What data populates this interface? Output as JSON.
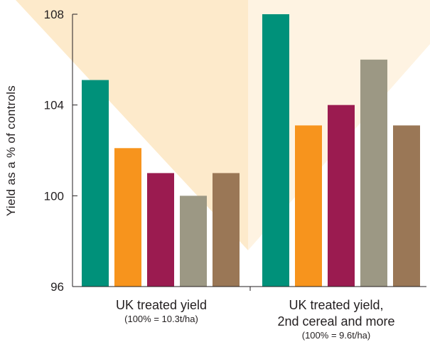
{
  "chart_data": {
    "type": "bar",
    "title": "",
    "xlabel": "",
    "ylabel": "Yield as a % of controls",
    "ylim": [
      96,
      108
    ],
    "yticks": [
      96,
      100,
      104,
      108
    ],
    "colors": [
      "#00917a",
      "#f7941d",
      "#9b1b50",
      "#9c9884",
      "#9a7756"
    ],
    "background_color": "#fdeacb",
    "groups": [
      {
        "label_lines": [
          "UK treated yield"
        ],
        "sublabel_lines": [
          "(100% = 10.3t/ha)"
        ],
        "values": [
          105.1,
          102.1,
          101.0,
          100.0,
          101.0
        ]
      },
      {
        "label_lines": [
          "UK treated yield,",
          "2nd cereal and more"
        ],
        "sublabel_lines": [
          "(100% = 9.6t/ha)"
        ],
        "values": [
          108.0,
          103.1,
          104.0,
          106.0,
          103.1
        ]
      }
    ]
  }
}
